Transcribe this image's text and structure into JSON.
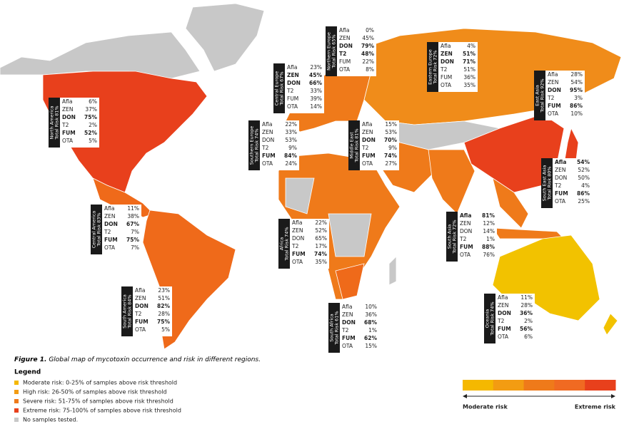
{
  "figure": {
    "caption": {
      "label": "Figure 1.",
      "text": "Global map of mycotoxin occurrence and risk in different regions."
    },
    "regions": [
      {
        "name": "North America",
        "total": "Total Risk 81%",
        "rows": [
          {
            "toxin": "Afla",
            "value": "6%"
          },
          {
            "toxin": "ZEN",
            "value": "37%"
          },
          {
            "toxin": "DON",
            "value": "75%",
            "bold": true
          },
          {
            "toxin": "T2",
            "value": "2%"
          },
          {
            "toxin": "FUM",
            "value": "52%",
            "bold": true
          },
          {
            "toxin": "OTA",
            "value": "5%"
          }
        ]
      },
      {
        "name": "Central Europe",
        "total": "Total Risk 67%",
        "rows": [
          {
            "toxin": "Afla",
            "value": "23%"
          },
          {
            "toxin": "ZEN",
            "value": "45%",
            "bold": true
          },
          {
            "toxin": "DON",
            "value": "66%",
            "bold": true
          },
          {
            "toxin": "T2",
            "value": "33%"
          },
          {
            "toxin": "FUM",
            "value": "39%"
          },
          {
            "toxin": "OTA",
            "value": "14%"
          }
        ]
      },
      {
        "name": "Northern Europe",
        "total": "Total Risk 65%",
        "rows": [
          {
            "toxin": "Afla",
            "value": "0%"
          },
          {
            "toxin": "ZEN",
            "value": "45%"
          },
          {
            "toxin": "DON",
            "value": "79%",
            "bold": true
          },
          {
            "toxin": "T2",
            "value": "48%",
            "bold": true
          },
          {
            "toxin": "FUM",
            "value": "22%"
          },
          {
            "toxin": "OTA",
            "value": "8%"
          }
        ]
      },
      {
        "name": "Eastern Europe",
        "total": "Total Risk 72%",
        "rows": [
          {
            "toxin": "Afla",
            "value": "4%"
          },
          {
            "toxin": "ZEN",
            "value": "51%",
            "bold": true
          },
          {
            "toxin": "DON",
            "value": "71%",
            "bold": true
          },
          {
            "toxin": "T2",
            "value": "51%"
          },
          {
            "toxin": "FUM",
            "value": "36%"
          },
          {
            "toxin": "OTA",
            "value": "35%"
          }
        ]
      },
      {
        "name": "East Asia",
        "total": "Total Risk 92%",
        "rows": [
          {
            "toxin": "Afla",
            "value": "28%"
          },
          {
            "toxin": "ZEN",
            "value": "54%"
          },
          {
            "toxin": "DON",
            "value": "95%",
            "bold": true
          },
          {
            "toxin": "T2",
            "value": "3%"
          },
          {
            "toxin": "FUM",
            "value": "86%",
            "bold": true
          },
          {
            "toxin": "OTA",
            "value": "10%"
          }
        ]
      },
      {
        "name": "Southern Europe",
        "total": "Total Risk 74%",
        "rows": [
          {
            "toxin": "Afla",
            "value": "22%"
          },
          {
            "toxin": "ZEN",
            "value": "33%"
          },
          {
            "toxin": "DON",
            "value": "53%"
          },
          {
            "toxin": "T2",
            "value": "9%"
          },
          {
            "toxin": "FUM",
            "value": "84%",
            "bold": true
          },
          {
            "toxin": "OTA",
            "value": "24%"
          }
        ]
      },
      {
        "name": "Middle East",
        "total": "Total Risk 81%",
        "rows": [
          {
            "toxin": "Afla",
            "value": "15%"
          },
          {
            "toxin": "ZEN",
            "value": "53%"
          },
          {
            "toxin": "DON",
            "value": "70%",
            "bold": true
          },
          {
            "toxin": "T2",
            "value": "9%"
          },
          {
            "toxin": "FUM",
            "value": "74%",
            "bold": true
          },
          {
            "toxin": "OTA",
            "value": "27%"
          }
        ]
      },
      {
        "name": "South East Asia",
        "total": "Total Risk 80%",
        "rows": [
          {
            "toxin": "Afla",
            "value": "54%",
            "bold": true
          },
          {
            "toxin": "ZEN",
            "value": "52%"
          },
          {
            "toxin": "DON",
            "value": "50%"
          },
          {
            "toxin": "T2",
            "value": "4%"
          },
          {
            "toxin": "FUM",
            "value": "86%",
            "bold": true
          },
          {
            "toxin": "OTA",
            "value": "25%"
          }
        ]
      },
      {
        "name": "Central America",
        "total": "Total Risk 83%",
        "rows": [
          {
            "toxin": "Afla",
            "value": "11%"
          },
          {
            "toxin": "ZEN",
            "value": "38%"
          },
          {
            "toxin": "DON",
            "value": "67%",
            "bold": true
          },
          {
            "toxin": "T2",
            "value": "7%"
          },
          {
            "toxin": "FUM",
            "value": "75%",
            "bold": true
          },
          {
            "toxin": "OTA",
            "value": "7%"
          }
        ]
      },
      {
        "name": "Africa",
        "total": "Total Risk 74%",
        "rows": [
          {
            "toxin": "Afla",
            "value": "22%"
          },
          {
            "toxin": "ZEN",
            "value": "52%"
          },
          {
            "toxin": "DON",
            "value": "65%"
          },
          {
            "toxin": "T2",
            "value": "17%"
          },
          {
            "toxin": "FUM",
            "value": "74%",
            "bold": true
          },
          {
            "toxin": "OTA",
            "value": "35%"
          }
        ]
      },
      {
        "name": "South Asia",
        "total": "Total Risk 72%",
        "rows": [
          {
            "toxin": "Afla",
            "value": "81%",
            "bold": true
          },
          {
            "toxin": "ZEN",
            "value": "12%"
          },
          {
            "toxin": "DON",
            "value": "14%"
          },
          {
            "toxin": "T2",
            "value": "1%"
          },
          {
            "toxin": "FUM",
            "value": "88%",
            "bold": true
          },
          {
            "toxin": "OTA",
            "value": "76%"
          }
        ]
      },
      {
        "name": "South America",
        "total": "Total Risk 84%",
        "rows": [
          {
            "toxin": "Afla",
            "value": "23%"
          },
          {
            "toxin": "ZEN",
            "value": "51%"
          },
          {
            "toxin": "DON",
            "value": "82%",
            "bold": true
          },
          {
            "toxin": "T2",
            "value": "28%"
          },
          {
            "toxin": "FUM",
            "value": "75%",
            "bold": true
          },
          {
            "toxin": "OTA",
            "value": "5%"
          }
        ]
      },
      {
        "name": "South Africa",
        "total": "Total Risk 61%",
        "rows": [
          {
            "toxin": "Afla",
            "value": "10%"
          },
          {
            "toxin": "ZEN",
            "value": "36%"
          },
          {
            "toxin": "DON",
            "value": "68%",
            "bold": true
          },
          {
            "toxin": "T2",
            "value": "1%"
          },
          {
            "toxin": "FUM",
            "value": "62%",
            "bold": true
          },
          {
            "toxin": "OTA",
            "value": "15%"
          }
        ]
      },
      {
        "name": "Oceania",
        "total": "Total Risk 74%",
        "rows": [
          {
            "toxin": "Afla",
            "value": "11%"
          },
          {
            "toxin": "ZEN",
            "value": "28%"
          },
          {
            "toxin": "DON",
            "value": "36%",
            "bold": true
          },
          {
            "toxin": "T2",
            "value": "2%"
          },
          {
            "toxin": "FUM",
            "value": "56%",
            "bold": true
          },
          {
            "toxin": "OTA",
            "value": "6%"
          }
        ]
      }
    ],
    "legend": {
      "title": "Legend",
      "items": [
        {
          "label": "Moderate risk: 0-25% of samples above risk threshold",
          "color": "#f5b800"
        },
        {
          "label": "High risk: 26-50% of samples above risk threshold",
          "color": "#f39c12"
        },
        {
          "label": "Severe risk: 51-75% of samples above risk threshold",
          "color": "#ef7a1a"
        },
        {
          "label": "Extreme risk: 75-100% of samples above risk threshold",
          "color": "#e8401c"
        },
        {
          "label": "No samples tested.",
          "color": "#c8c8c8"
        }
      ],
      "scale": {
        "low": "Moderate risk",
        "high": "Extreme risk",
        "colors": [
          "#f5b800",
          "#f39c12",
          "#ef7a1a",
          "#f06a22",
          "#e8401c"
        ]
      }
    }
  }
}
